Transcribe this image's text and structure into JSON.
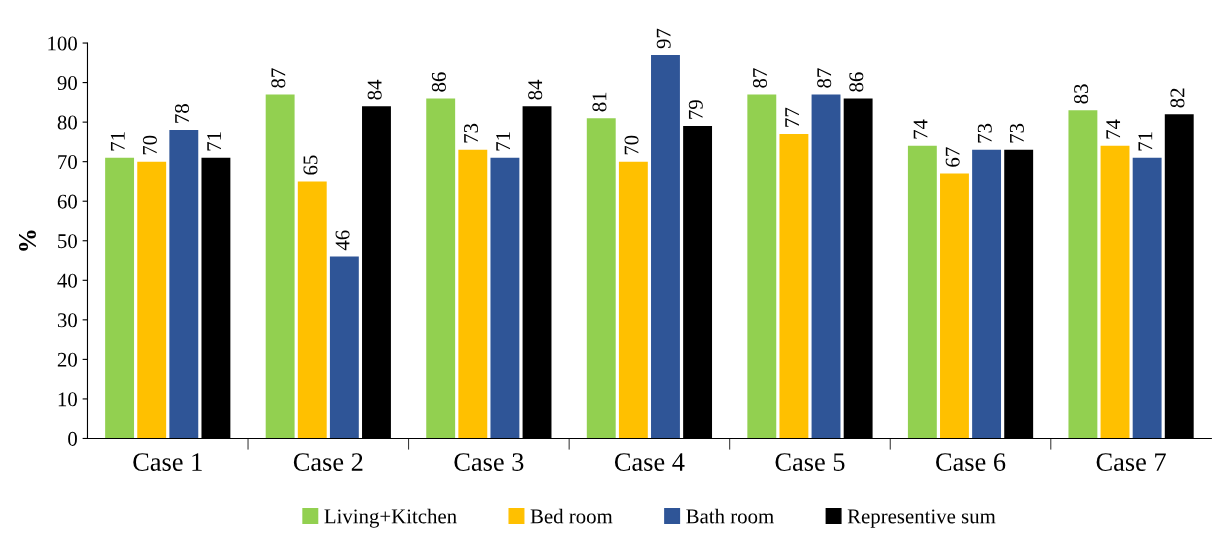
{
  "chart_data": {
    "type": "bar",
    "ylabel": "%",
    "categories": [
      "Case 1",
      "Case 2",
      "Case 3",
      "Case 4",
      "Case 5",
      "Case 6",
      "Case 7"
    ],
    "series": [
      {
        "name": "Living+Kitchen",
        "color": "#92d050",
        "values": [
          71,
          87,
          86,
          81,
          87,
          74,
          83
        ]
      },
      {
        "name": "Bed room",
        "color": "#ffc000",
        "values": [
          70,
          65,
          73,
          70,
          77,
          67,
          74
        ]
      },
      {
        "name": "Bath room",
        "color": "#2f5597",
        "values": [
          78,
          46,
          71,
          97,
          87,
          73,
          71
        ]
      },
      {
        "name": "Representive sum",
        "color": "#000000",
        "values": [
          71,
          84,
          84,
          79,
          86,
          73,
          82
        ]
      }
    ],
    "ylim": [
      0,
      100
    ],
    "yticks": [
      0,
      10,
      20,
      30,
      40,
      50,
      60,
      70,
      80,
      90,
      100
    ],
    "data_labels": true,
    "legend": "bottom",
    "grid": false
  }
}
